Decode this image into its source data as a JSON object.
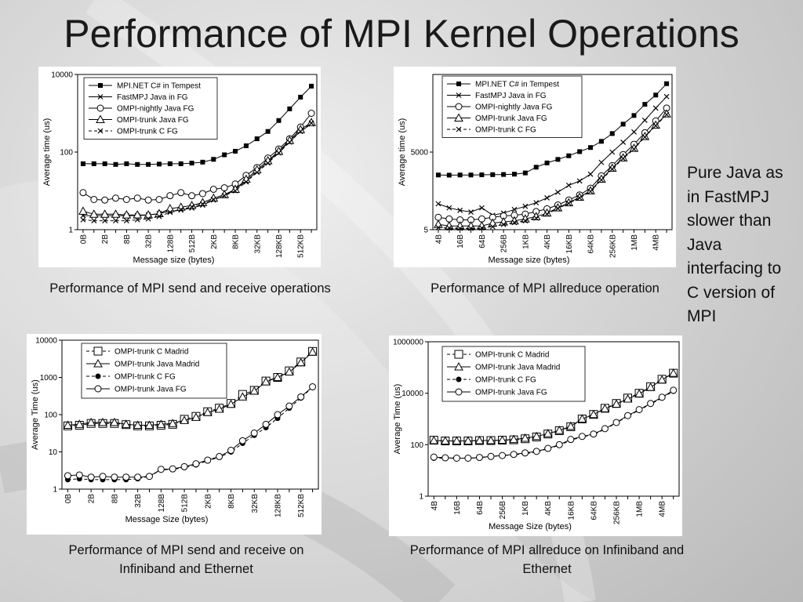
{
  "slide": {
    "title": "Performance of MPI Kernel Operations",
    "side_note": "Pure Java as in FastMPJ slower than Java interfacing to C version of MPI"
  },
  "captions": {
    "c1": "Performance of MPI send and receive operations",
    "c2": "Performance of MPI allreduce operation",
    "c3": "Performance of MPI send and receive on Infiniband and Ethernet",
    "c4": "Performance of MPI allreduce on Infiniband and Ethernet"
  },
  "chart_data": [
    {
      "type": "line",
      "id": "sendrecv_tempest",
      "xlabel": "Message size (bytes)",
      "ylabel": "Average time (us)",
      "yscale": "log",
      "ylim": [
        1,
        10000
      ],
      "yticks": [
        "1",
        "100",
        "10000"
      ],
      "x": [
        "0B",
        "1B",
        "2B",
        "4B",
        "8B",
        "16B",
        "32B",
        "64B",
        "128B",
        "256B",
        "512B",
        "1KB",
        "2KB",
        "4KB",
        "8KB",
        "16KB",
        "32KB",
        "64KB",
        "128KB",
        "256KB",
        "512KB",
        "1MB"
      ],
      "xticks_shown": [
        "0B",
        "2B",
        "8B",
        "32B",
        "128B",
        "512B",
        "2KB",
        "8KB",
        "32KB",
        "128KB",
        "512KB"
      ],
      "legend_position": "top-left",
      "series": [
        {
          "name": "MPI.NET C# in Tempest",
          "marker": "square-filled",
          "dash": "solid",
          "values": [
            50,
            50,
            50,
            48,
            50,
            48,
            48,
            49,
            50,
            50,
            52,
            55,
            65,
            85,
            105,
            145,
            220,
            340,
            650,
            1300,
            2600,
            5000
          ]
        },
        {
          "name": "FastMPJ Java in FG",
          "marker": "x",
          "dash": "solid",
          "values": [
            2.3,
            2.3,
            2.3,
            2.3,
            2.3,
            2.3,
            2.4,
            2.6,
            3,
            3.2,
            3.6,
            4.3,
            5.8,
            7.5,
            11,
            18,
            32,
            55,
            100,
            190,
            340,
            530
          ]
        },
        {
          "name": "OMPI-nightly Java FG",
          "marker": "circle-open",
          "dash": "solid",
          "values": [
            9,
            6,
            5.8,
            6.5,
            6,
            6.5,
            5.8,
            6,
            7.5,
            9,
            7.5,
            8.5,
            11,
            12,
            15,
            25,
            40,
            70,
            120,
            220,
            440,
            1000
          ]
        },
        {
          "name": "OMPI-trunk Java FG",
          "marker": "triangle-open",
          "dash": "solid",
          "values": [
            3,
            2.5,
            2.5,
            2.5,
            2.4,
            2.4,
            2.4,
            2.6,
            3.5,
            3.8,
            4.2,
            5,
            6.5,
            8,
            11,
            20,
            35,
            60,
            105,
            200,
            380,
            580
          ]
        },
        {
          "name": "OMPI-trunk C FG",
          "marker": "x",
          "dash": "dashed",
          "values": [
            1.8,
            1.7,
            1.7,
            1.7,
            1.7,
            1.8,
            1.9,
            2.2,
            2.8,
            3.3,
            3.9,
            4.6,
            6,
            7.5,
            10,
            17,
            30,
            52,
            95,
            180,
            340,
            560
          ]
        }
      ]
    },
    {
      "type": "line",
      "id": "allreduce_tempest",
      "xlabel": "Message size (bytes)",
      "ylabel": "Average time (us)",
      "yscale": "log",
      "ylim": [
        5,
        5000000
      ],
      "yticks": [
        "5",
        "5000"
      ],
      "x": [
        "4B",
        "8B",
        "16B",
        "32B",
        "64B",
        "128B",
        "256B",
        "512B",
        "1KB",
        "2KB",
        "4KB",
        "8KB",
        "16KB",
        "32KB",
        "64KB",
        "128KB",
        "256KB",
        "512KB",
        "1MB",
        "2MB",
        "4MB",
        "8MB"
      ],
      "xticks_shown": [
        "4B",
        "16B",
        "64B",
        "256B",
        "1KB",
        "4KB",
        "16KB",
        "64KB",
        "256KB",
        "1MB",
        "4MB"
      ],
      "legend_position": "top-left",
      "series": [
        {
          "name": "MPI.NET C# in Tempest",
          "marker": "square-filled",
          "dash": "solid",
          "values": [
            650,
            640,
            650,
            650,
            660,
            670,
            680,
            700,
            780,
            1300,
            1900,
            2600,
            3600,
            5200,
            7500,
            13000,
            26000,
            60000,
            130000,
            350000,
            800000,
            2200000
          ]
        },
        {
          "name": "FastMPJ Java in FG",
          "marker": "x",
          "dash": "solid",
          "values": [
            50,
            35,
            28,
            24,
            35,
            18,
            22,
            30,
            40,
            55,
            85,
            140,
            260,
            380,
            700,
            2000,
            5000,
            12000,
            30000,
            85000,
            250000,
            700000
          ]
        },
        {
          "name": "OMPI-nightly Java FG",
          "marker": "circle-open",
          "dash": "solid",
          "values": [
            15,
            13,
            12,
            12,
            13,
            15,
            17,
            18,
            20,
            25,
            32,
            45,
            70,
            110,
            200,
            600,
            1500,
            4000,
            10000,
            28000,
            80000,
            250000
          ]
        },
        {
          "name": "OMPI-trunk Java FG",
          "marker": "triangle-open",
          "dash": "solid",
          "values": [
            8,
            7,
            7,
            7,
            7,
            9,
            10,
            11,
            13,
            16,
            22,
            35,
            55,
            90,
            160,
            450,
            1200,
            3000,
            7000,
            20000,
            55000,
            150000
          ]
        },
        {
          "name": "OMPI-trunk C FG",
          "marker": "x",
          "dash": "dashed",
          "values": [
            6,
            5.8,
            5.6,
            5.6,
            5.8,
            6.5,
            8,
            9.5,
            11,
            14,
            20,
            33,
            52,
            85,
            150,
            420,
            1100,
            2800,
            6500,
            19000,
            52000,
            140000
          ]
        }
      ]
    },
    {
      "type": "line",
      "id": "sendrecv_ib_eth",
      "xlabel": "Message Size (bytes)",
      "ylabel": "Average Time (us)",
      "yscale": "log",
      "ylim": [
        1,
        10000
      ],
      "yticks": [
        "1",
        "10",
        "100",
        "1000",
        "10000"
      ],
      "x": [
        "0B",
        "1B",
        "2B",
        "4B",
        "8B",
        "16B",
        "32B",
        "64B",
        "128B",
        "256B",
        "512B",
        "1KB",
        "2KB",
        "4KB",
        "8KB",
        "16KB",
        "32KB",
        "64KB",
        "128KB",
        "256KB",
        "512KB",
        "1MB"
      ],
      "xticks_shown": [
        "0B",
        "2B",
        "8B",
        "32B",
        "128B",
        "512B",
        "2KB",
        "8KB",
        "32KB",
        "128KB",
        "512KB"
      ],
      "legend_position": "top-left",
      "series": [
        {
          "name": "OMPI-trunk C Madrid",
          "marker": "square-open",
          "dash": "dashed",
          "values": [
            50,
            52,
            58,
            58,
            58,
            54,
            50,
            50,
            52,
            55,
            75,
            90,
            120,
            150,
            200,
            350,
            450,
            800,
            1000,
            1500,
            2600,
            5000
          ]
        },
        {
          "name": "OMPI-trunk Java Madrid",
          "marker": "triangle-open",
          "dash": "solid",
          "values": [
            52,
            55,
            62,
            62,
            62,
            55,
            52,
            52,
            55,
            58,
            70,
            85,
            115,
            140,
            190,
            300,
            430,
            760,
            1000,
            1400,
            2500,
            4800
          ]
        },
        {
          "name": "OMPI-trunk C FG",
          "marker": "circle-filled",
          "dash": "dashed",
          "values": [
            1.8,
            1.9,
            1.8,
            1.8,
            1.8,
            1.8,
            1.9,
            2.2,
            3.3,
            3.4,
            3.8,
            4.5,
            5.8,
            7.2,
            10,
            17,
            28,
            45,
            80,
            150,
            280,
            550
          ]
        },
        {
          "name": "OMPI-trunk Java FG",
          "marker": "circle-open",
          "dash": "solid",
          "values": [
            2.3,
            2.4,
            2.1,
            2.2,
            2.1,
            2.1,
            2.1,
            2.2,
            3.4,
            3.5,
            4,
            4.8,
            6,
            7.5,
            11,
            20,
            32,
            55,
            100,
            170,
            300,
            560
          ]
        }
      ]
    },
    {
      "type": "line",
      "id": "allreduce_ib_eth",
      "xlabel": "Message Size (bytes)",
      "ylabel": "Average Time (us)",
      "yscale": "log",
      "ylim": [
        1,
        1000000
      ],
      "yticks": [
        "1",
        "100",
        "10000",
        "1000000"
      ],
      "x": [
        "4B",
        "8B",
        "16B",
        "32B",
        "64B",
        "128B",
        "256B",
        "512B",
        "1KB",
        "2KB",
        "4KB",
        "8KB",
        "16KB",
        "32KB",
        "64KB",
        "128KB",
        "256KB",
        "512KB",
        "1MB",
        "2MB",
        "4MB",
        "8MB"
      ],
      "xticks_shown": [
        "4B",
        "16B",
        "64B",
        "256B",
        "1KB",
        "4KB",
        "16KB",
        "64KB",
        "256KB",
        "1MB",
        "4MB"
      ],
      "legend_position": "top-left",
      "series": [
        {
          "name": "OMPI-trunk C Madrid",
          "marker": "square-open",
          "dash": "dashed",
          "values": [
            150,
            140,
            140,
            140,
            145,
            145,
            150,
            155,
            170,
            200,
            260,
            350,
            500,
            1000,
            1500,
            2600,
            4000,
            6500,
            10000,
            18000,
            35000,
            60000
          ]
        },
        {
          "name": "OMPI-trunk Java Madrid",
          "marker": "triangle-open",
          "dash": "solid",
          "values": [
            145,
            140,
            140,
            140,
            145,
            145,
            150,
            160,
            180,
            210,
            270,
            360,
            520,
            1000,
            1500,
            2500,
            3800,
            6000,
            9500,
            17000,
            33000,
            60000
          ]
        },
        {
          "name": "OMPI-trunk C FG",
          "marker": "circle-filled",
          "dash": "dashed",
          "values": [
            30,
            30,
            30,
            30,
            31,
            35,
            38,
            40,
            45,
            52,
            70,
            95,
            150,
            200,
            250,
            400,
            700,
            1300,
            2200,
            3800,
            6500,
            12000
          ]
        },
        {
          "name": "OMPI-trunk Java FG",
          "marker": "circle-open",
          "dash": "solid",
          "values": [
            33,
            31,
            30,
            30,
            32,
            35,
            38,
            42,
            48,
            55,
            72,
            100,
            160,
            210,
            260,
            420,
            730,
            1350,
            2300,
            4000,
            7000,
            13000
          ]
        }
      ]
    }
  ]
}
